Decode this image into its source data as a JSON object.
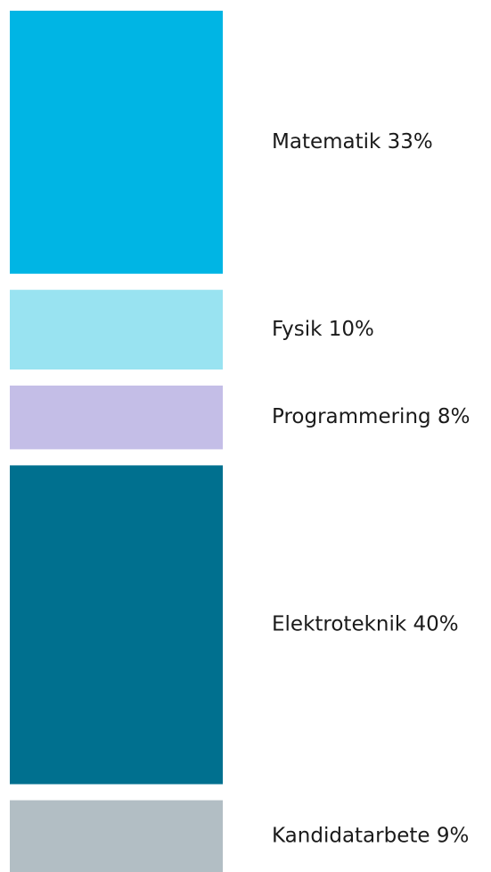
{
  "chart_data": {
    "type": "bar",
    "orientation": "stacked-vertical",
    "categories": [
      "Matematik",
      "Fysik",
      "Programmering",
      "Elektroteknik",
      "Kandidatarbete"
    ],
    "values": [
      33,
      10,
      8,
      40,
      9
    ],
    "unit": "%",
    "labels": [
      "Matematik 33%",
      "Fysik 10%",
      "Programmering 8%",
      "Elektroteknik 40%",
      "Kandidatarbete 9%"
    ],
    "colors": [
      "#00b5e4",
      "#99e3f1",
      "#c4bee7",
      "#00708f",
      "#b2bec4"
    ],
    "legend": "right"
  }
}
